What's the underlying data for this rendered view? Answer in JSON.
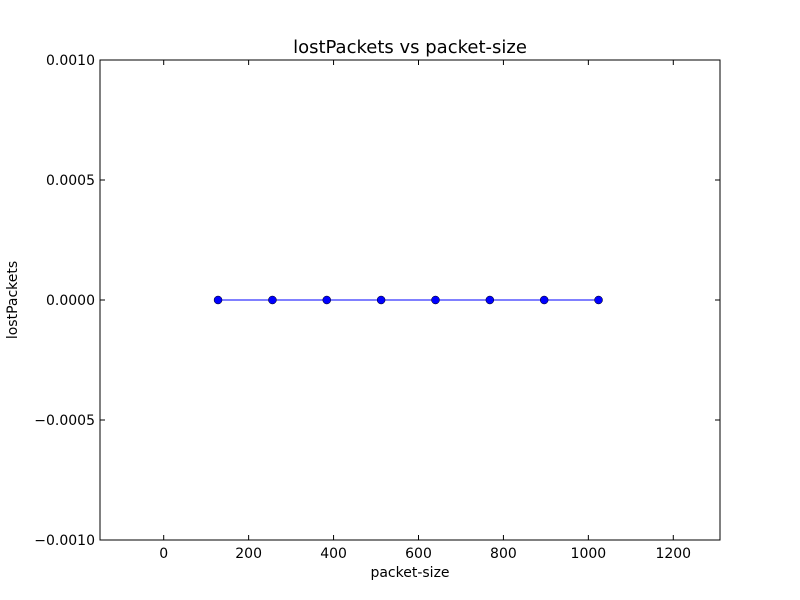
{
  "chart_data": {
    "type": "line",
    "title": "lostPackets vs packet-size",
    "xlabel": "packet-size",
    "ylabel": "lostPackets",
    "xlim": [
      -150,
      1310
    ],
    "ylim": [
      -0.001,
      0.001
    ],
    "xticks": [
      0,
      200,
      400,
      600,
      800,
      1000,
      1200
    ],
    "xtick_labels": [
      "0",
      "200",
      "400",
      "600",
      "800",
      "1000",
      "1200"
    ],
    "yticks": [
      0.001,
      0.0005,
      0.0,
      -0.0005,
      -0.001
    ],
    "ytick_labels": [
      "0.0010",
      "0.0005",
      "0.0000",
      "−0.0005",
      "−0.0010"
    ],
    "grid": false,
    "series": [
      {
        "x": [
          128,
          256,
          384,
          512,
          640,
          768,
          896,
          1024
        ],
        "y": [
          0,
          0,
          0,
          0,
          0,
          0,
          0,
          0
        ],
        "color": "#0000ff",
        "marker": "circle"
      }
    ]
  }
}
